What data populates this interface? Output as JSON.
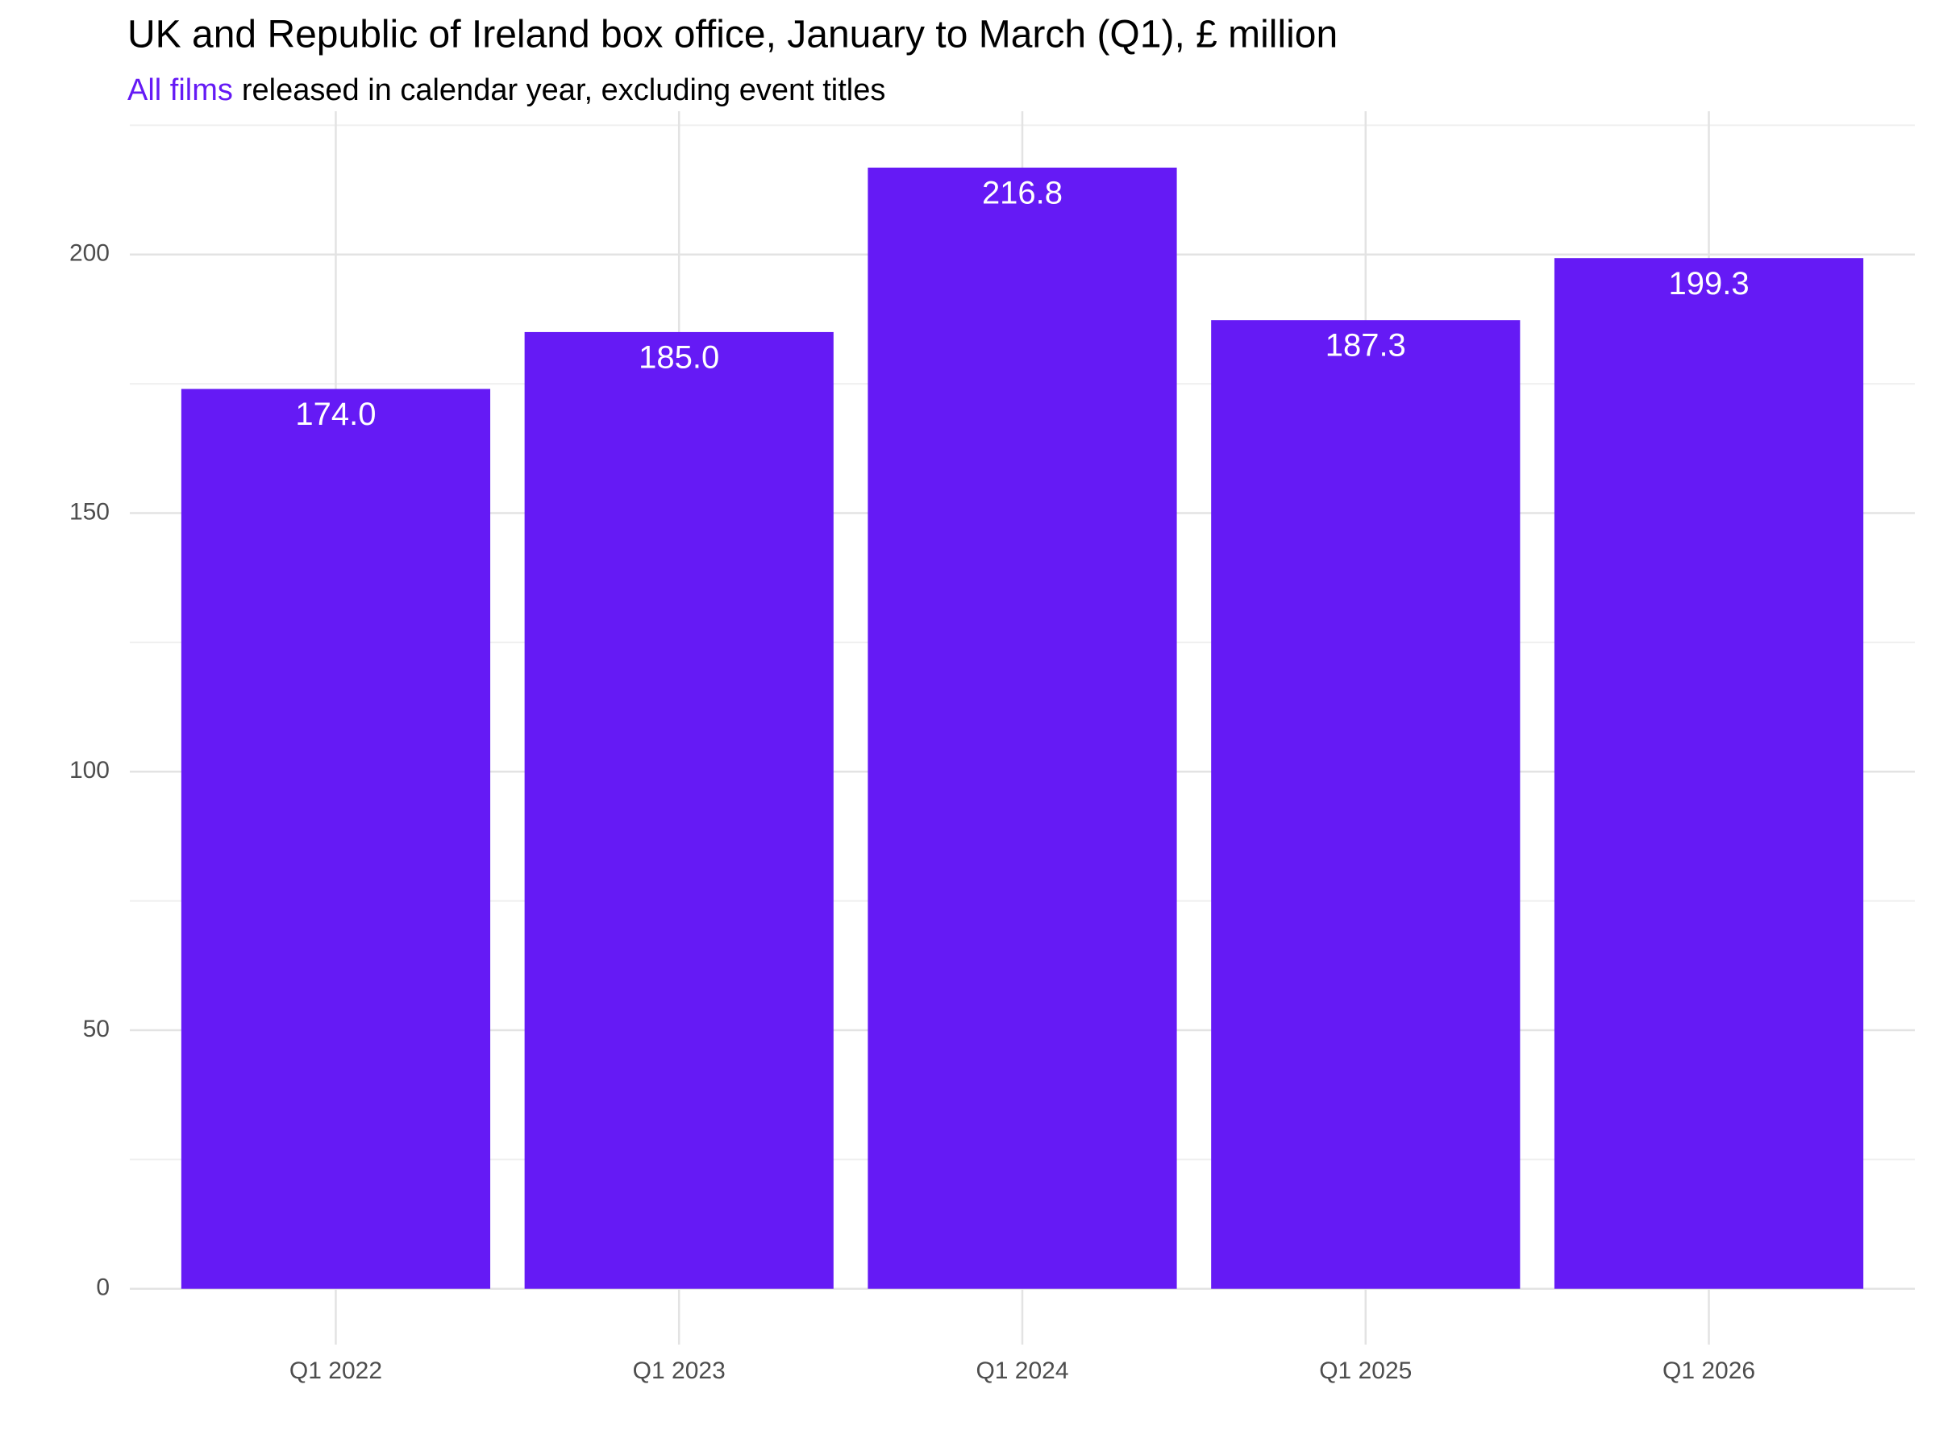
{
  "chart_data": {
    "type": "bar",
    "title": "UK and Republic of Ireland box office, January to March (Q1), £ million",
    "subtitle": {
      "highlight": "All films",
      "text": "released in calendar year, excluding event titles"
    },
    "categories": [
      "Q1 2022",
      "Q1 2023",
      "Q1 2024",
      "Q1 2025",
      "Q1 2026"
    ],
    "values": [
      174.0,
      185.0,
      216.8,
      187.3,
      199.3
    ],
    "value_labels": [
      "174.0",
      "185.0",
      "216.8",
      "187.3",
      "199.3"
    ],
    "color": "#651af5",
    "ylim": [
      -10.8,
      227.7
    ],
    "yticks": [
      0,
      50,
      100,
      150,
      200
    ],
    "minor_yticks": [
      25,
      75,
      125,
      175,
      225
    ],
    "grid": true
  }
}
